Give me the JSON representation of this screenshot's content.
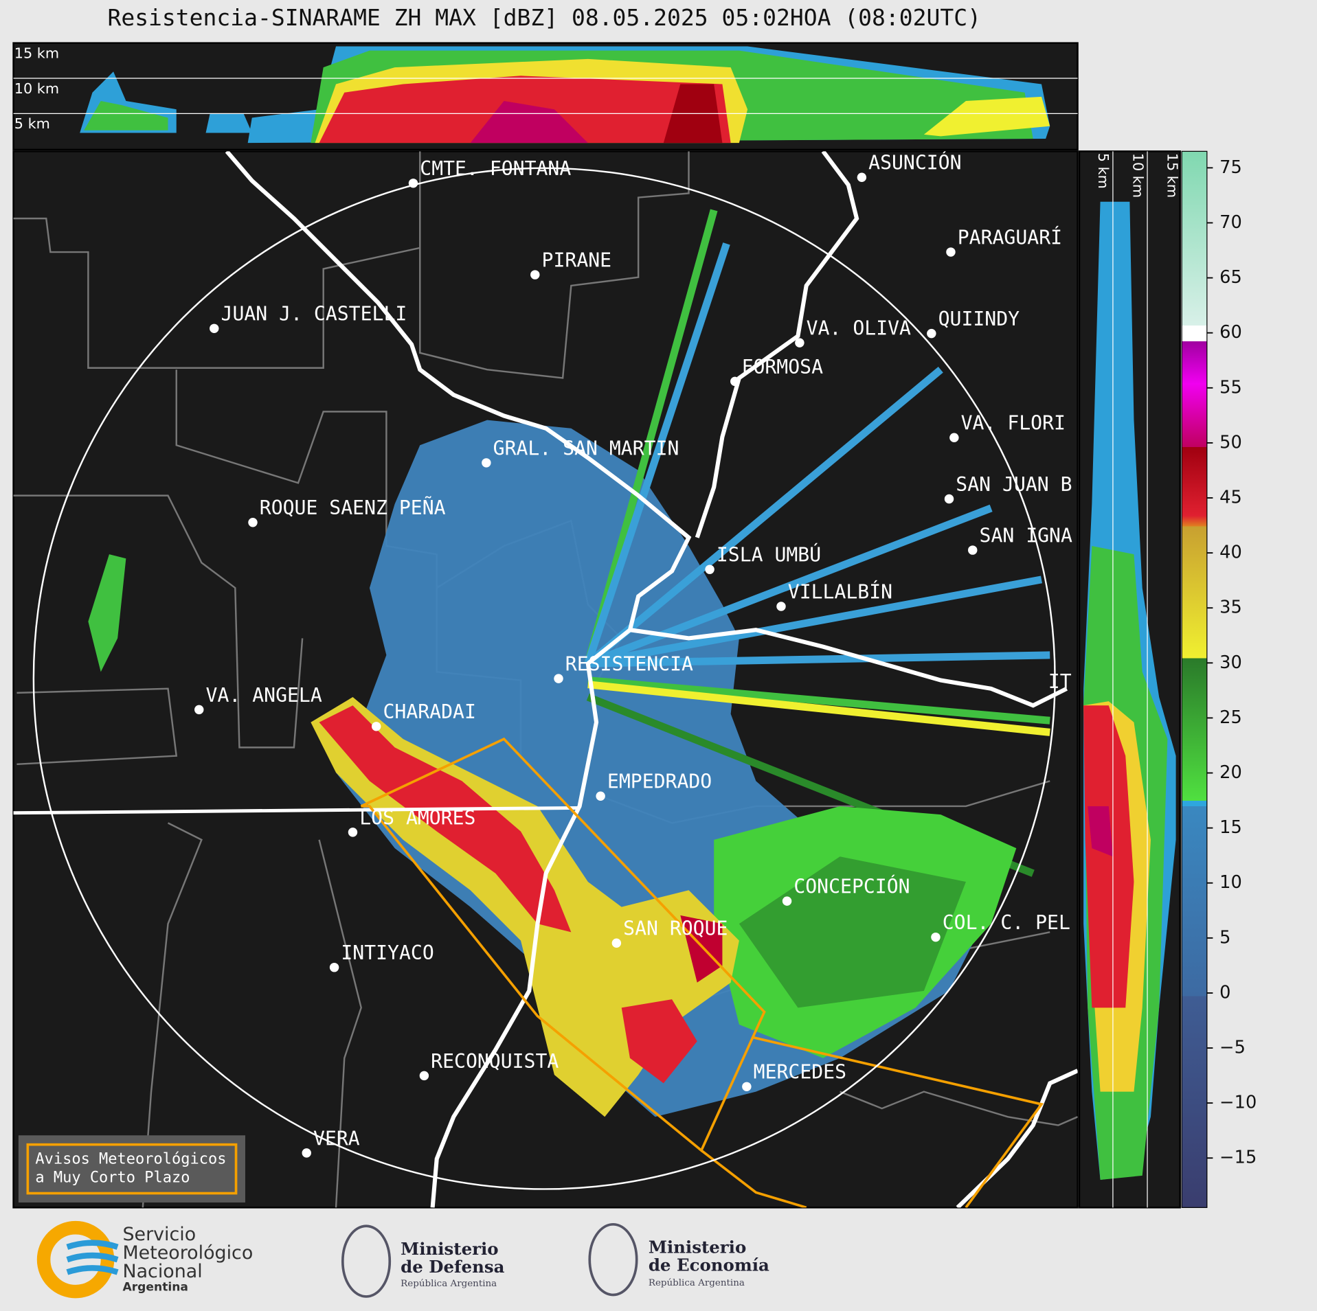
{
  "header": {
    "title": "Resistencia-SINARAME ZH MAX [dBZ] 08.05.2025 05:02HOA (08:02UTC)"
  },
  "top_panel": {
    "height_labels": [
      "15 km",
      "10 km",
      "5 km"
    ]
  },
  "side_panel": {
    "height_labels": [
      "5 km",
      "10 km",
      "15 km"
    ]
  },
  "cities": [
    {
      "name": "CMTE. FONTANA"
    },
    {
      "name": "ASUNCIÓN"
    },
    {
      "name": "PIRANE"
    },
    {
      "name": "PARAGUARÍ"
    },
    {
      "name": "JUAN J. CASTELLI"
    },
    {
      "name": "VA. OLIVA"
    },
    {
      "name": "QUIINDY"
    },
    {
      "name": "FORMOSA"
    },
    {
      "name": "VA. FLORI"
    },
    {
      "name": "GRAL. SAN MARTIN"
    },
    {
      "name": "SAN JUAN B"
    },
    {
      "name": "ROQUE SAENZ PEÑA"
    },
    {
      "name": "SAN IGNA"
    },
    {
      "name": "ISLA UMBÚ"
    },
    {
      "name": "VILLALBÍN"
    },
    {
      "name": "RESISTENCIA"
    },
    {
      "name": "VA. ANGELA"
    },
    {
      "name": "IT"
    },
    {
      "name": "CHARADAI"
    },
    {
      "name": "EMPEDRADO"
    },
    {
      "name": "LOS AMORES"
    },
    {
      "name": "CONCEPCIÓN"
    },
    {
      "name": "COL. C. PEL"
    },
    {
      "name": "SAN ROQUE"
    },
    {
      "name": "INTIYACO"
    },
    {
      "name": "RECONQUISTA"
    },
    {
      "name": "MERCEDES"
    },
    {
      "name": "VERA"
    }
  ],
  "colorbar": {
    "ylim": [
      -19.5,
      76.5
    ],
    "ticks": [
      75,
      70,
      65,
      60,
      55,
      50,
      45,
      40,
      35,
      30,
      25,
      20,
      15,
      10,
      5,
      0,
      {
        "value": -5,
        "label": "−5"
      },
      {
        "value": -10,
        "label": "−10"
      },
      {
        "value": -15,
        "label": "−15"
      }
    ]
  },
  "legend_box": {
    "lines": [
      "Avisos Meteorológicos",
      "a Muy Corto Plazo"
    ]
  },
  "footer": {
    "smn": [
      "Servicio",
      "Meteorológico",
      "Nacional",
      "Argentina"
    ],
    "defensa": [
      "Ministerio",
      "de Defensa",
      "República Argentina"
    ],
    "economia": [
      "Ministerio",
      "de Economía",
      "República Argentina"
    ]
  }
}
